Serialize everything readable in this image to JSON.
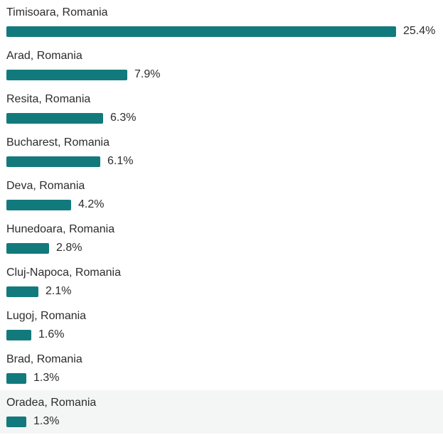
{
  "chart_data": {
    "type": "bar",
    "orientation": "horizontal",
    "categories": [
      "Timisoara, Romania",
      "Arad, Romania",
      "Resita, Romania",
      "Bucharest, Romania",
      "Deva, Romania",
      "Hunedoara, Romania",
      "Cluj-Napoca, Romania",
      "Lugoj, Romania",
      "Brad, Romania",
      "Oradea, Romania"
    ],
    "values": [
      25.4,
      7.9,
      6.3,
      6.1,
      4.2,
      2.8,
      2.1,
      1.6,
      1.3,
      1.3
    ],
    "value_labels": [
      "25.4%",
      "7.9%",
      "6.3%",
      "6.1%",
      "4.2%",
      "2.8%",
      "2.1%",
      "1.6%",
      "1.3%",
      "1.3%"
    ],
    "title": "",
    "xlabel": "",
    "ylabel": "",
    "bar_color": "#127a7c",
    "grid": false,
    "legend": "none"
  }
}
